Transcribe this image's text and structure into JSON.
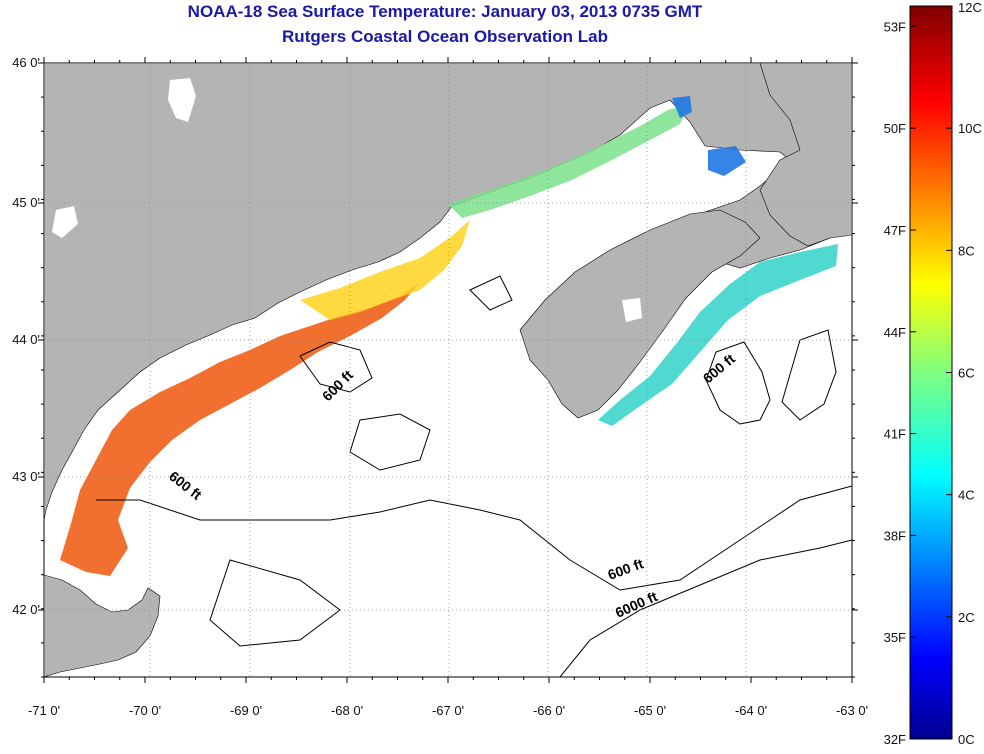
{
  "title": "NOAA-18 Sea Surface Temperature:  January 03, 2013 0735 GMT",
  "subtitle": "Rutgers Coastal Ocean Observation Lab",
  "map": {
    "lon_ticks": [
      "-71 0'",
      "-70 0'",
      "-69 0'",
      "-68 0'",
      "-67 0'",
      "-66 0'",
      "-65 0'",
      "-64 0'",
      "-63 0'"
    ],
    "lat_ticks": [
      "46 0'",
      "45 0'",
      "44 0'",
      "43 0'",
      "42 0'"
    ],
    "lon_range": [
      -71,
      -63
    ],
    "lat_range": [
      41.5,
      46
    ],
    "contour_labels": [
      "600 ft",
      "600 ft",
      "600 ft",
      "600 ft",
      "6000 ft"
    ],
    "colors": {
      "land": "#b4b4b4",
      "water_no_data": "#ffffff",
      "grid": "#888888"
    }
  },
  "colorbar": {
    "fahrenheit_labels": [
      "53F",
      "50F",
      "47F",
      "44F",
      "41F",
      "38F",
      "35F",
      "32F"
    ],
    "celsius_labels": [
      "12C",
      "10C",
      "8C",
      "6C",
      "4C",
      "2C",
      "0C"
    ],
    "range_c": [
      0,
      12
    ],
    "colormap": "jet"
  }
}
